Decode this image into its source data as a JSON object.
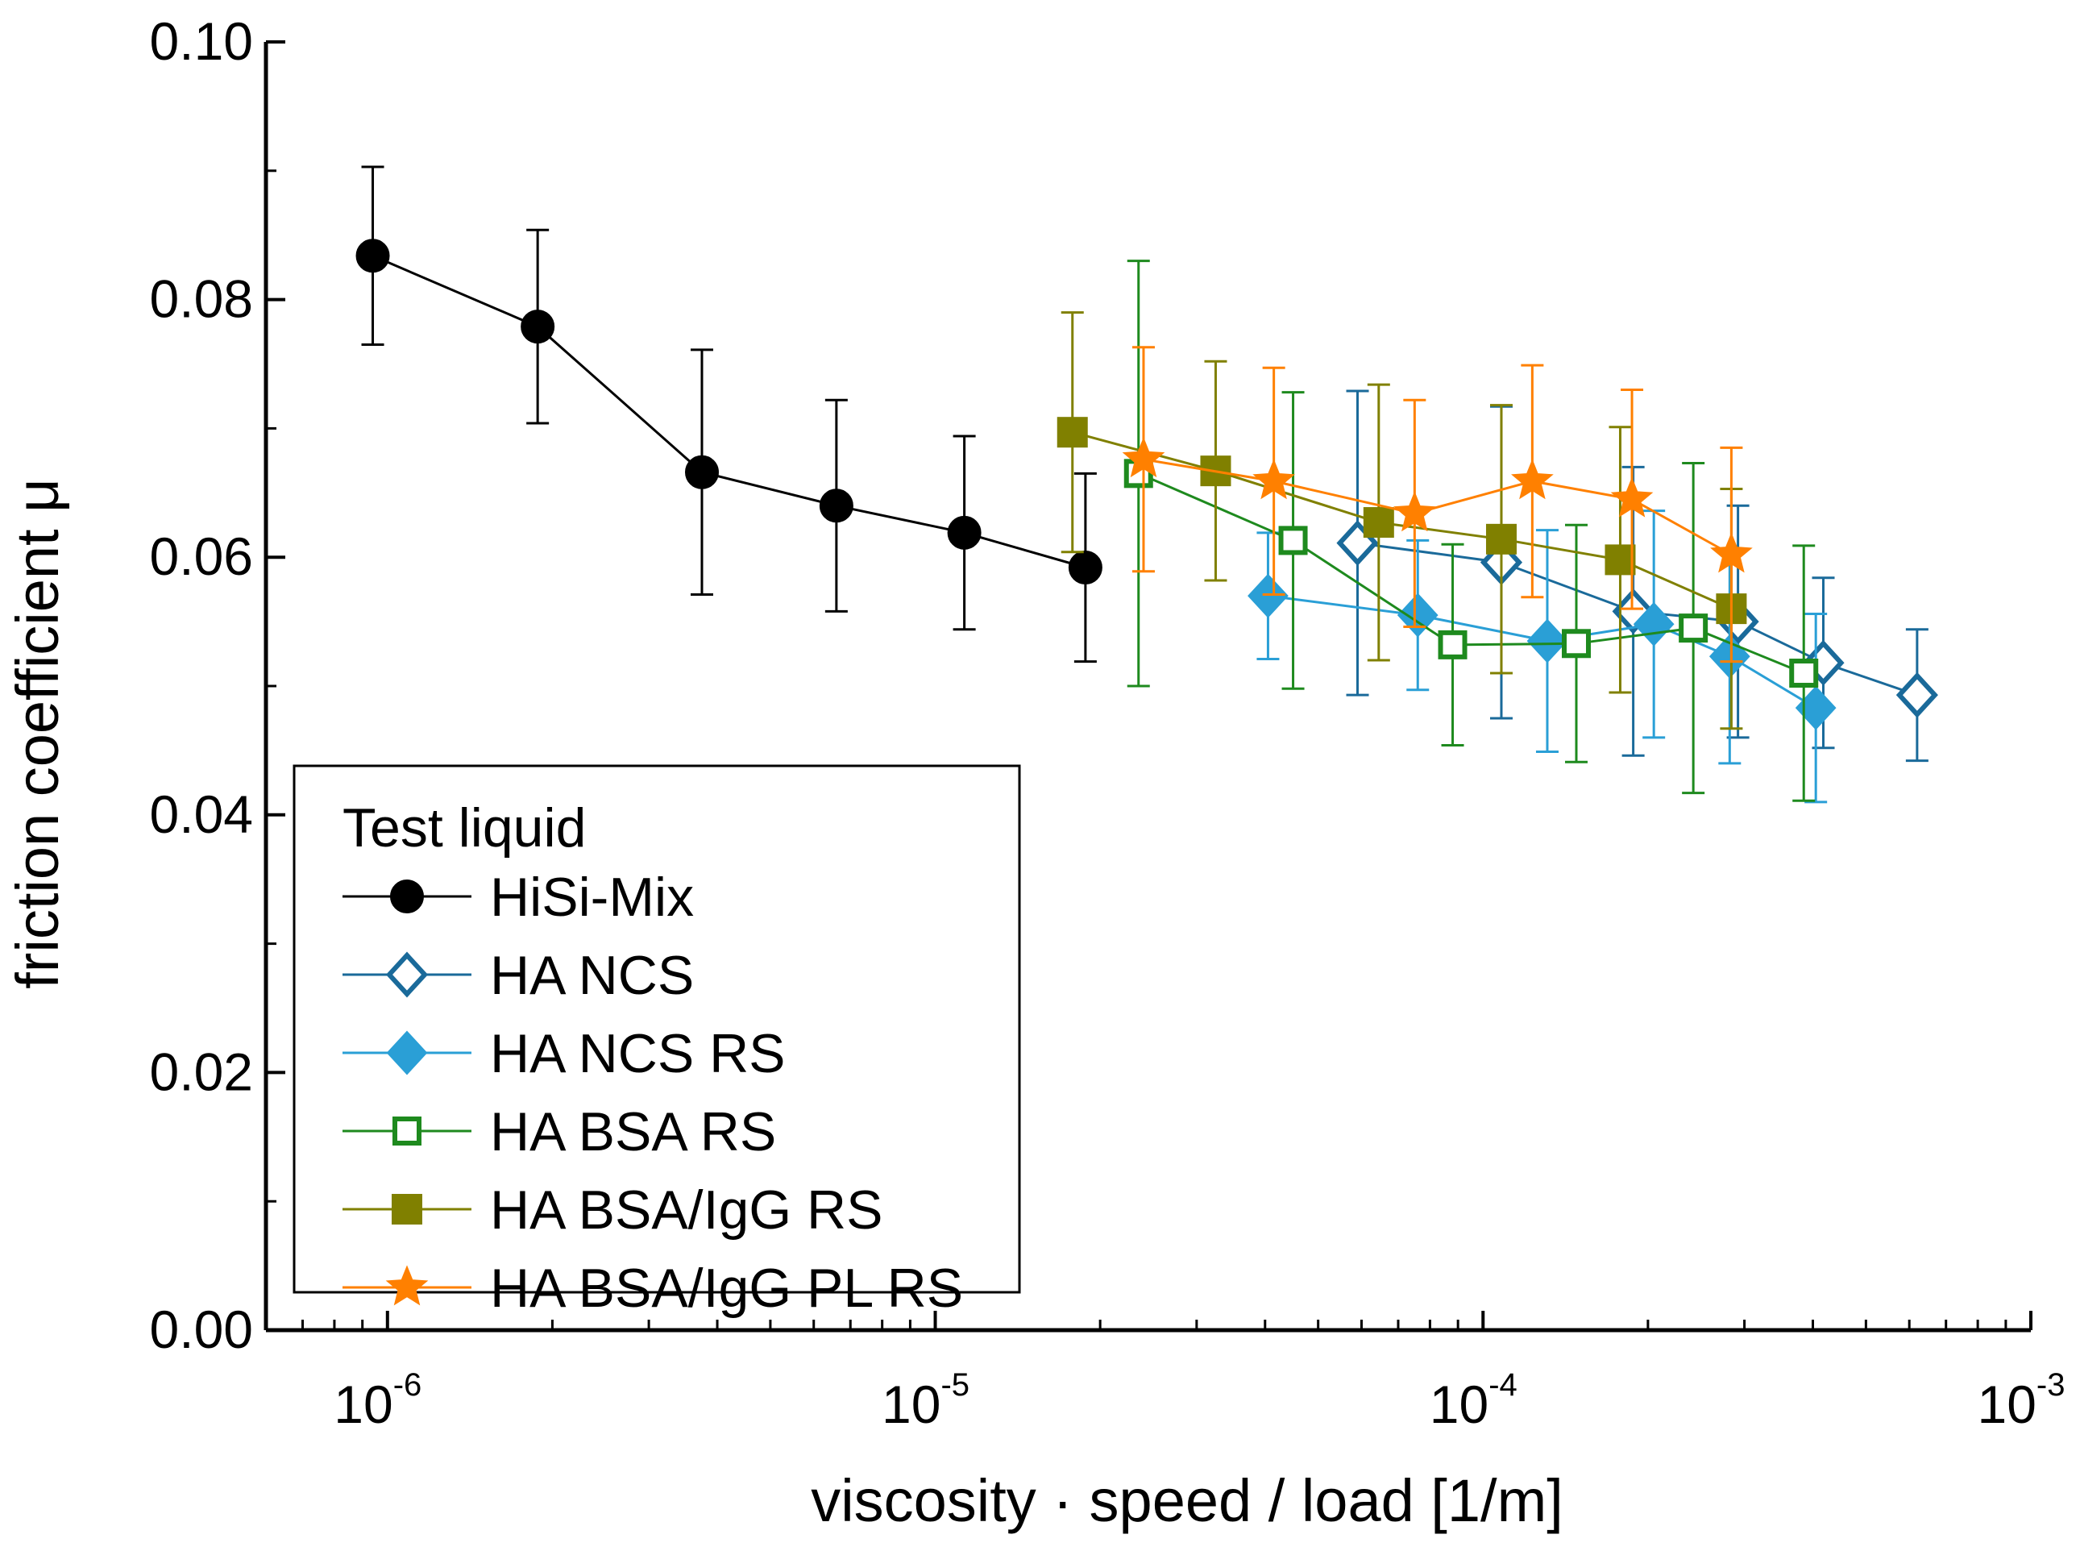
{
  "chart_data": {
    "type": "scatter",
    "xscale": "log",
    "xlim": [
      6e-07,
      0.001
    ],
    "ylim": [
      0,
      0.1
    ],
    "xlabel": "viscosity · speed / load [1/m]",
    "ylabel": "friction coefficient μ",
    "x_ticks": [
      {
        "base": "10",
        "exp": "-6",
        "value": 1e-06
      },
      {
        "base": "10",
        "exp": "-5",
        "value": 1e-05
      },
      {
        "base": "10",
        "exp": "-4",
        "value": 0.0001
      },
      {
        "base": "10",
        "exp": "-3",
        "value": 0.001
      }
    ],
    "y_ticks": [
      {
        "label": "0.00",
        "value": 0
      },
      {
        "label": "0.02",
        "value": 0.02
      },
      {
        "label": "0.04",
        "value": 0.04
      },
      {
        "label": "0.06",
        "value": 0.06
      },
      {
        "label": "0.08",
        "value": 0.08
      },
      {
        "label": "0.10",
        "value": 0.1
      }
    ],
    "legend_title": "Test liquid",
    "legend_position": "bottom-left",
    "series": [
      {
        "name": "HiSi-Mix",
        "color": "#000000",
        "marker": "circle-filled",
        "x": [
          9.4e-07,
          1.88e-06,
          3.75e-06,
          6.6e-06,
          1.13e-05,
          1.88e-05
        ],
        "y": [
          0.0834,
          0.0779,
          0.0666,
          0.064,
          0.0619,
          0.0592
        ],
        "err": [
          0.0069,
          0.0075,
          0.0095,
          0.0082,
          0.0075,
          0.0073
        ]
      },
      {
        "name": "HA NCS",
        "color": "#1a6a9a",
        "marker": "diamond-open",
        "x": [
          5.9e-05,
          0.000108,
          0.000188,
          0.000292,
          0.000418,
          0.00062
        ],
        "y": [
          0.0611,
          0.0596,
          0.0558,
          0.055,
          0.0518,
          0.0493
        ],
        "err": [
          0.0118,
          0.0121,
          0.0112,
          0.009,
          0.0066,
          0.0051
        ]
      },
      {
        "name": "HA NCS RS",
        "color": "#2a9fd6",
        "marker": "diamond-filled",
        "x": [
          4.05e-05,
          7.6e-05,
          0.000131,
          0.000205,
          0.000282,
          0.000405
        ],
        "y": [
          0.057,
          0.0555,
          0.0535,
          0.0548,
          0.0523,
          0.0483
        ],
        "err": [
          0.0049,
          0.0058,
          0.0086,
          0.0088,
          0.0083,
          0.0073
        ]
      },
      {
        "name": "HA BSA RS",
        "color": "#1e8a1e",
        "marker": "square-open",
        "x": [
          2.35e-05,
          4.5e-05,
          8.8e-05,
          0.000148,
          0.000242,
          0.000385
        ],
        "y": [
          0.0665,
          0.0613,
          0.0532,
          0.0533,
          0.0545,
          0.051
        ],
        "err": [
          0.0165,
          0.0115,
          0.0078,
          0.0092,
          0.0128,
          0.0099
        ]
      },
      {
        "name": "HA BSA/IgG RS",
        "color": "#808000",
        "marker": "square-filled",
        "x": [
          1.78e-05,
          3.25e-05,
          6.45e-05,
          0.000108,
          0.000178,
          0.000284
        ],
        "y": [
          0.0697,
          0.0667,
          0.0627,
          0.0614,
          0.0598,
          0.056
        ],
        "err": [
          0.0093,
          0.0085,
          0.0107,
          0.0104,
          0.0103,
          0.0093
        ]
      },
      {
        "name": "HA BSA/IgG PL RS",
        "color": "#ff8000",
        "marker": "star-filled",
        "x": [
          2.4e-05,
          4.15e-05,
          7.5e-05,
          0.000123,
          0.000187,
          0.000284
        ],
        "y": [
          0.0676,
          0.0659,
          0.0634,
          0.0659,
          0.0645,
          0.0602
        ],
        "err": [
          0.0087,
          0.0088,
          0.0088,
          0.009,
          0.0085,
          0.0083
        ]
      }
    ]
  }
}
